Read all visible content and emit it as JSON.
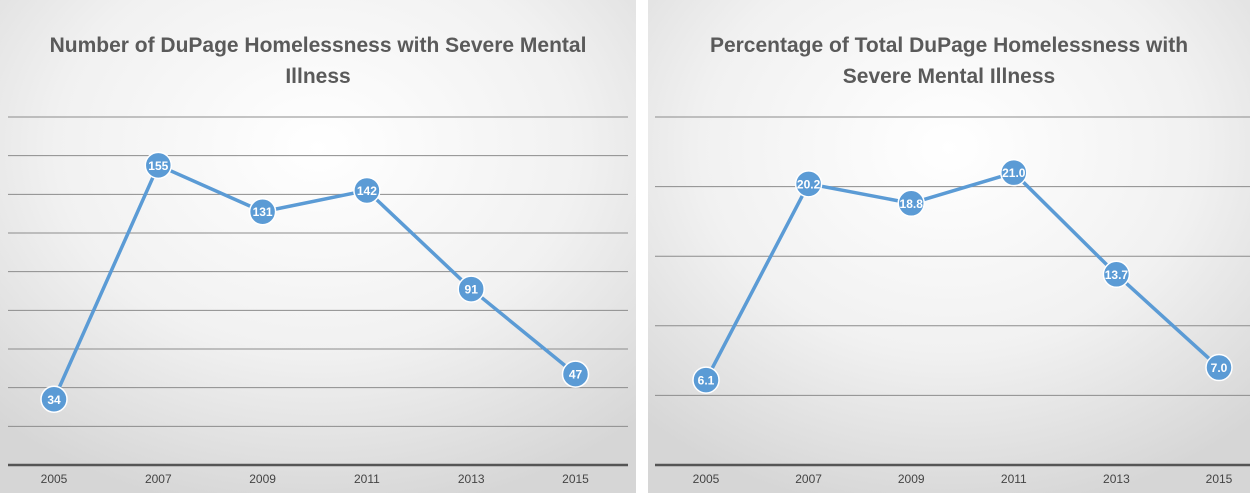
{
  "colors": {
    "line": "#5b9bd5",
    "marker": "#5b9bd5",
    "label_text": "#ffffff",
    "title_text": "#5a5a5a",
    "axis": "#555555",
    "gridline": "#8c8c8c"
  },
  "chart_data": [
    {
      "type": "line",
      "title": "Number of DuPage Homelessness with Severe Mental Illness",
      "categories": [
        "2005",
        "2007",
        "2009",
        "2011",
        "2013",
        "2015"
      ],
      "series": [
        {
          "values": [
            34,
            155,
            131,
            142,
            91,
            47
          ]
        }
      ],
      "data_labels": [
        "34",
        "155",
        "131",
        "142",
        "91",
        "47"
      ],
      "ylim": [
        0,
        180
      ],
      "grid": true,
      "xlabel": "",
      "ylabel": ""
    },
    {
      "type": "line",
      "title": "Percentage of Total DuPage Homelessness with Severe Mental Illness",
      "categories": [
        "2005",
        "2007",
        "2009",
        "2011",
        "2013",
        "2015"
      ],
      "series": [
        {
          "values": [
            6.1,
            20.2,
            18.8,
            21.0,
            13.7,
            7.0
          ]
        }
      ],
      "data_labels": [
        "6.1",
        "20.2",
        "18.8",
        "21.0",
        "13.7",
        "7.0"
      ],
      "ylim": [
        0,
        25
      ],
      "grid": true,
      "xlabel": "",
      "ylabel": ""
    }
  ]
}
